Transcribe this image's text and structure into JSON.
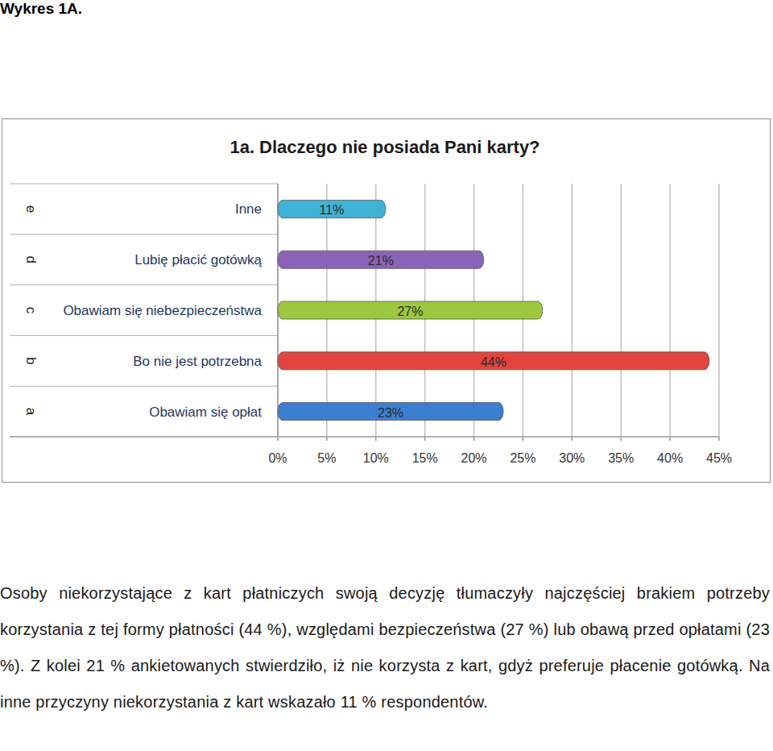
{
  "heading": "Wykres 1A.",
  "chart_data": {
    "type": "bar",
    "orientation": "horizontal",
    "title": "1a. Dlaczego nie posiada Pani karty?",
    "categories": [
      "Obawiam się opłat",
      "Bo nie jest potrzebna",
      "Obawiam się niebezpieczeństwa",
      "Lubię płacić gotówką",
      "Inne"
    ],
    "category_codes": [
      "a",
      "b",
      "c",
      "d",
      "e"
    ],
    "values": [
      23,
      44,
      27,
      21,
      11
    ],
    "value_labels": [
      "23%",
      "44%",
      "27%",
      "21%",
      "11%"
    ],
    "colors": [
      "#3b7fd0",
      "#e2453d",
      "#9cc83f",
      "#8a63b8",
      "#3fb3d6"
    ],
    "xlim": [
      0,
      45
    ],
    "xticks": [
      {
        "value": 0,
        "label": "0%"
      },
      {
        "value": 5,
        "label": "5%"
      },
      {
        "value": 10,
        "label": "10%"
      },
      {
        "value": 15,
        "label": "15%"
      },
      {
        "value": 20,
        "label": "20%"
      },
      {
        "value": 25,
        "label": "25%"
      },
      {
        "value": 30,
        "label": "30%"
      },
      {
        "value": 35,
        "label": "35%"
      },
      {
        "value": 40,
        "label": "40%"
      },
      {
        "value": 45,
        "label": "45%"
      }
    ],
    "grid": true,
    "data_labels": true
  },
  "paragraph": "Osoby niekorzystające z kart płatniczych swoją decyzję tłumaczyły najczęściej brakiem potrzeby korzystania z tej formy płatności (44 %), względami bezpieczeństwa (27 %) lub obawą przed opłatami (23 %). Z kolei 21 % ankietowanych stwierdziło, iż nie korzysta z kart, gdyż preferuje płacenie gotówką. Na inne przyczyny niekorzystania z kart wskazało 11 % respondentów."
}
